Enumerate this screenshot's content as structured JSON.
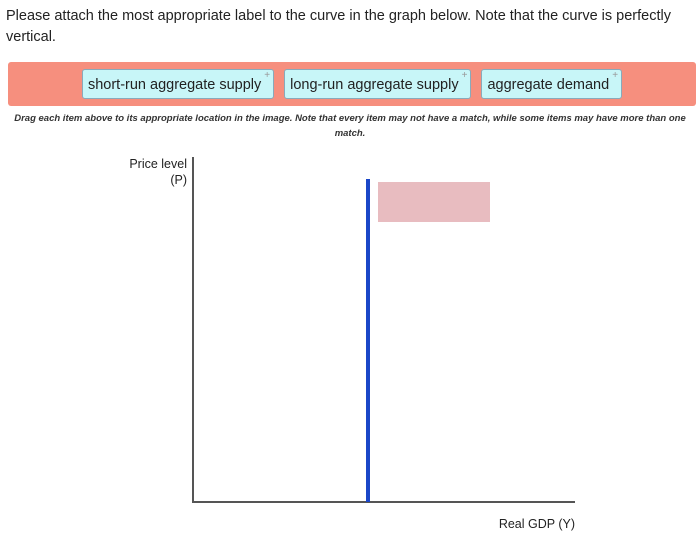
{
  "question": "Please attach the most appropriate label to the curve in the graph below. Note that the curve is perfectly vertical.",
  "labels": [
    "short-run aggregate supply",
    "long-run aggregate supply",
    "aggregate demand"
  ],
  "plus": "+",
  "hint": "Drag each item above to its appropriate location in the image. Note that every item may not have a match, while some items may have more than one match.",
  "graph": {
    "y_label_line1": "Price level",
    "y_label_line2": "(P)",
    "x_label": "Real GDP (Y)",
    "curve_color": "#1a47c8",
    "dropzone_color": "#e8bcc0"
  }
}
